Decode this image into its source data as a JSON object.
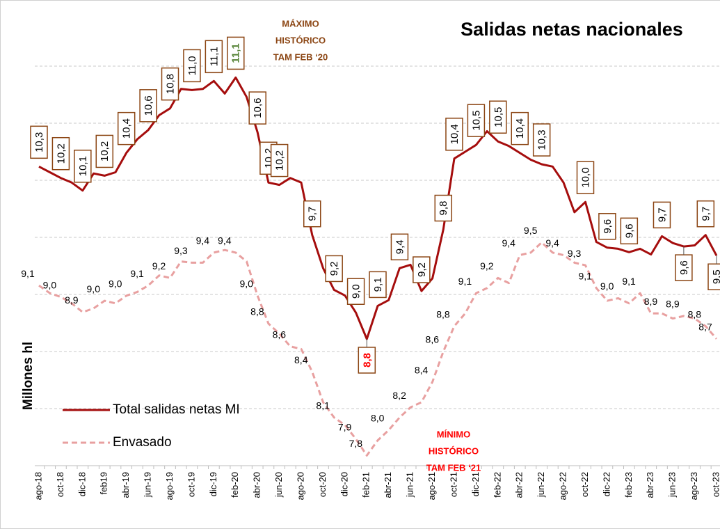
{
  "chart_data": {
    "type": "line",
    "title": "Salidas netas nacionales",
    "y_label": "Millones hl",
    "annotations": [
      {
        "lines": [
          "MÁXIMO",
          "HISTÓRICO",
          "TAM FEB ‘20"
        ],
        "color": "#8b4513"
      },
      {
        "lines": [
          "MÍNIMO",
          "HISTÓRICO",
          "TAM FEB ‘21"
        ],
        "color": "#ff0000"
      }
    ],
    "categories": [
      "ago-18",
      null,
      "oct-18",
      null,
      "dic-18",
      null,
      "feb19",
      null,
      "abr-19",
      null,
      "jun-19",
      null,
      "ago-19",
      null,
      "oct-19",
      null,
      "dic-19",
      null,
      "feb-20",
      null,
      "abr-20",
      null,
      "jun-20",
      null,
      "ago-20",
      null,
      "oct-20",
      null,
      "dic-20",
      null,
      "feb-21",
      null,
      "abr-21",
      null,
      "jun-21",
      null,
      "ago-21",
      null,
      "oct-21",
      null,
      "dic-21",
      null,
      "feb-22",
      null,
      "abr-22",
      null,
      "jun-22",
      null,
      "ago-22",
      null,
      "oct-22",
      null,
      "dic-22",
      null,
      "feb-23",
      null,
      "abr-23",
      null,
      "jun-23",
      null,
      "ago-23",
      null,
      "oct-23"
    ],
    "ylim": [
      7.7,
      11.7
    ],
    "yticks": [
      8.2,
      8.7,
      9.2,
      9.7,
      10.2,
      10.7,
      11.2
    ],
    "y2lim": [
      7.7,
      11.3
    ],
    "grid": true,
    "legend": "lower left",
    "series": [
      {
        "name": "Total salidas netas MI",
        "color": "#a50d0d",
        "dashed": false,
        "values": [
          10.32,
          10.27,
          10.22,
          10.18,
          10.11,
          10.26,
          10.24,
          10.27,
          10.44,
          10.56,
          10.64,
          10.77,
          10.83,
          11.0,
          10.99,
          11.0,
          11.07,
          10.96,
          11.1,
          10.93,
          10.62,
          10.18,
          10.16,
          10.22,
          10.18,
          9.72,
          9.43,
          9.24,
          9.19,
          9.04,
          8.81,
          9.1,
          9.15,
          9.43,
          9.46,
          9.23,
          9.34,
          9.77,
          10.39,
          10.45,
          10.51,
          10.63,
          10.54,
          10.5,
          10.44,
          10.38,
          10.34,
          10.32,
          10.18,
          9.92,
          10.01,
          9.66,
          9.61,
          9.6,
          9.57,
          9.6,
          9.55,
          9.71,
          9.65,
          9.62,
          9.63,
          9.72,
          9.54
        ],
        "value_labels": [
          "10,3",
          null,
          "10,2",
          null,
          "10,1",
          null,
          "10,2",
          null,
          "10,4",
          null,
          "10,6",
          null,
          "10,8",
          null,
          "11,0",
          null,
          "11,1",
          null,
          "11,1",
          null,
          "10,6",
          "10,2",
          "10,2",
          null,
          null,
          "9,7",
          null,
          "9,2",
          null,
          "9,0",
          "8,8",
          "9,1",
          null,
          "9,4",
          null,
          "9,2",
          null,
          "9,8",
          "10,4",
          null,
          "10,5",
          null,
          "10,5",
          null,
          "10,4",
          null,
          "10,3",
          null,
          null,
          null,
          "10,0",
          null,
          "9,6",
          null,
          "9,6",
          null,
          null,
          "9,7",
          null,
          "9,6",
          null,
          "9,7",
          "9,5"
        ]
      },
      {
        "name": "Envasado",
        "color": "#e8a0a0",
        "dashed": true,
        "axis": "y2",
        "values": [
          9.12,
          9.06,
          9.03,
          8.98,
          8.91,
          8.94,
          9.0,
          8.98,
          9.04,
          9.07,
          9.12,
          9.2,
          9.18,
          9.31,
          9.3,
          9.3,
          9.38,
          9.4,
          9.38,
          9.31,
          9.04,
          8.82,
          8.74,
          8.64,
          8.62,
          8.44,
          8.2,
          8.08,
          8.02,
          7.91,
          7.78,
          7.9,
          7.98,
          8.08,
          8.16,
          8.2,
          8.36,
          8.6,
          8.8,
          8.9,
          9.06,
          9.1,
          9.18,
          9.14,
          9.36,
          9.38,
          9.46,
          9.38,
          9.36,
          9.3,
          9.28,
          9.1,
          9.0,
          9.02,
          8.98,
          9.06,
          8.9,
          8.9,
          8.86,
          8.88,
          8.86,
          8.8,
          8.7
        ],
        "value_labels": [
          "9,1",
          null,
          "9,0",
          null,
          "8,9",
          null,
          "9,0",
          null,
          "9,0",
          null,
          "9,1",
          null,
          "9,2",
          null,
          "9,3",
          null,
          "9,4",
          null,
          "9,4",
          null,
          "9,0",
          "8,8",
          null,
          "8,6",
          null,
          "8,4",
          null,
          "8,1",
          null,
          "7,9",
          "7,8",
          null,
          "8,0",
          null,
          "8,2",
          null,
          "8,4",
          "8,6",
          "8,8",
          null,
          "9,1",
          null,
          "9,2",
          null,
          "9,4",
          null,
          "9,5",
          null,
          "9,4",
          null,
          "9,3",
          "9,1",
          null,
          "9,0",
          null,
          "9,1",
          null,
          "8,9",
          null,
          "8,9",
          null,
          "8,8",
          "8,7"
        ]
      }
    ]
  }
}
